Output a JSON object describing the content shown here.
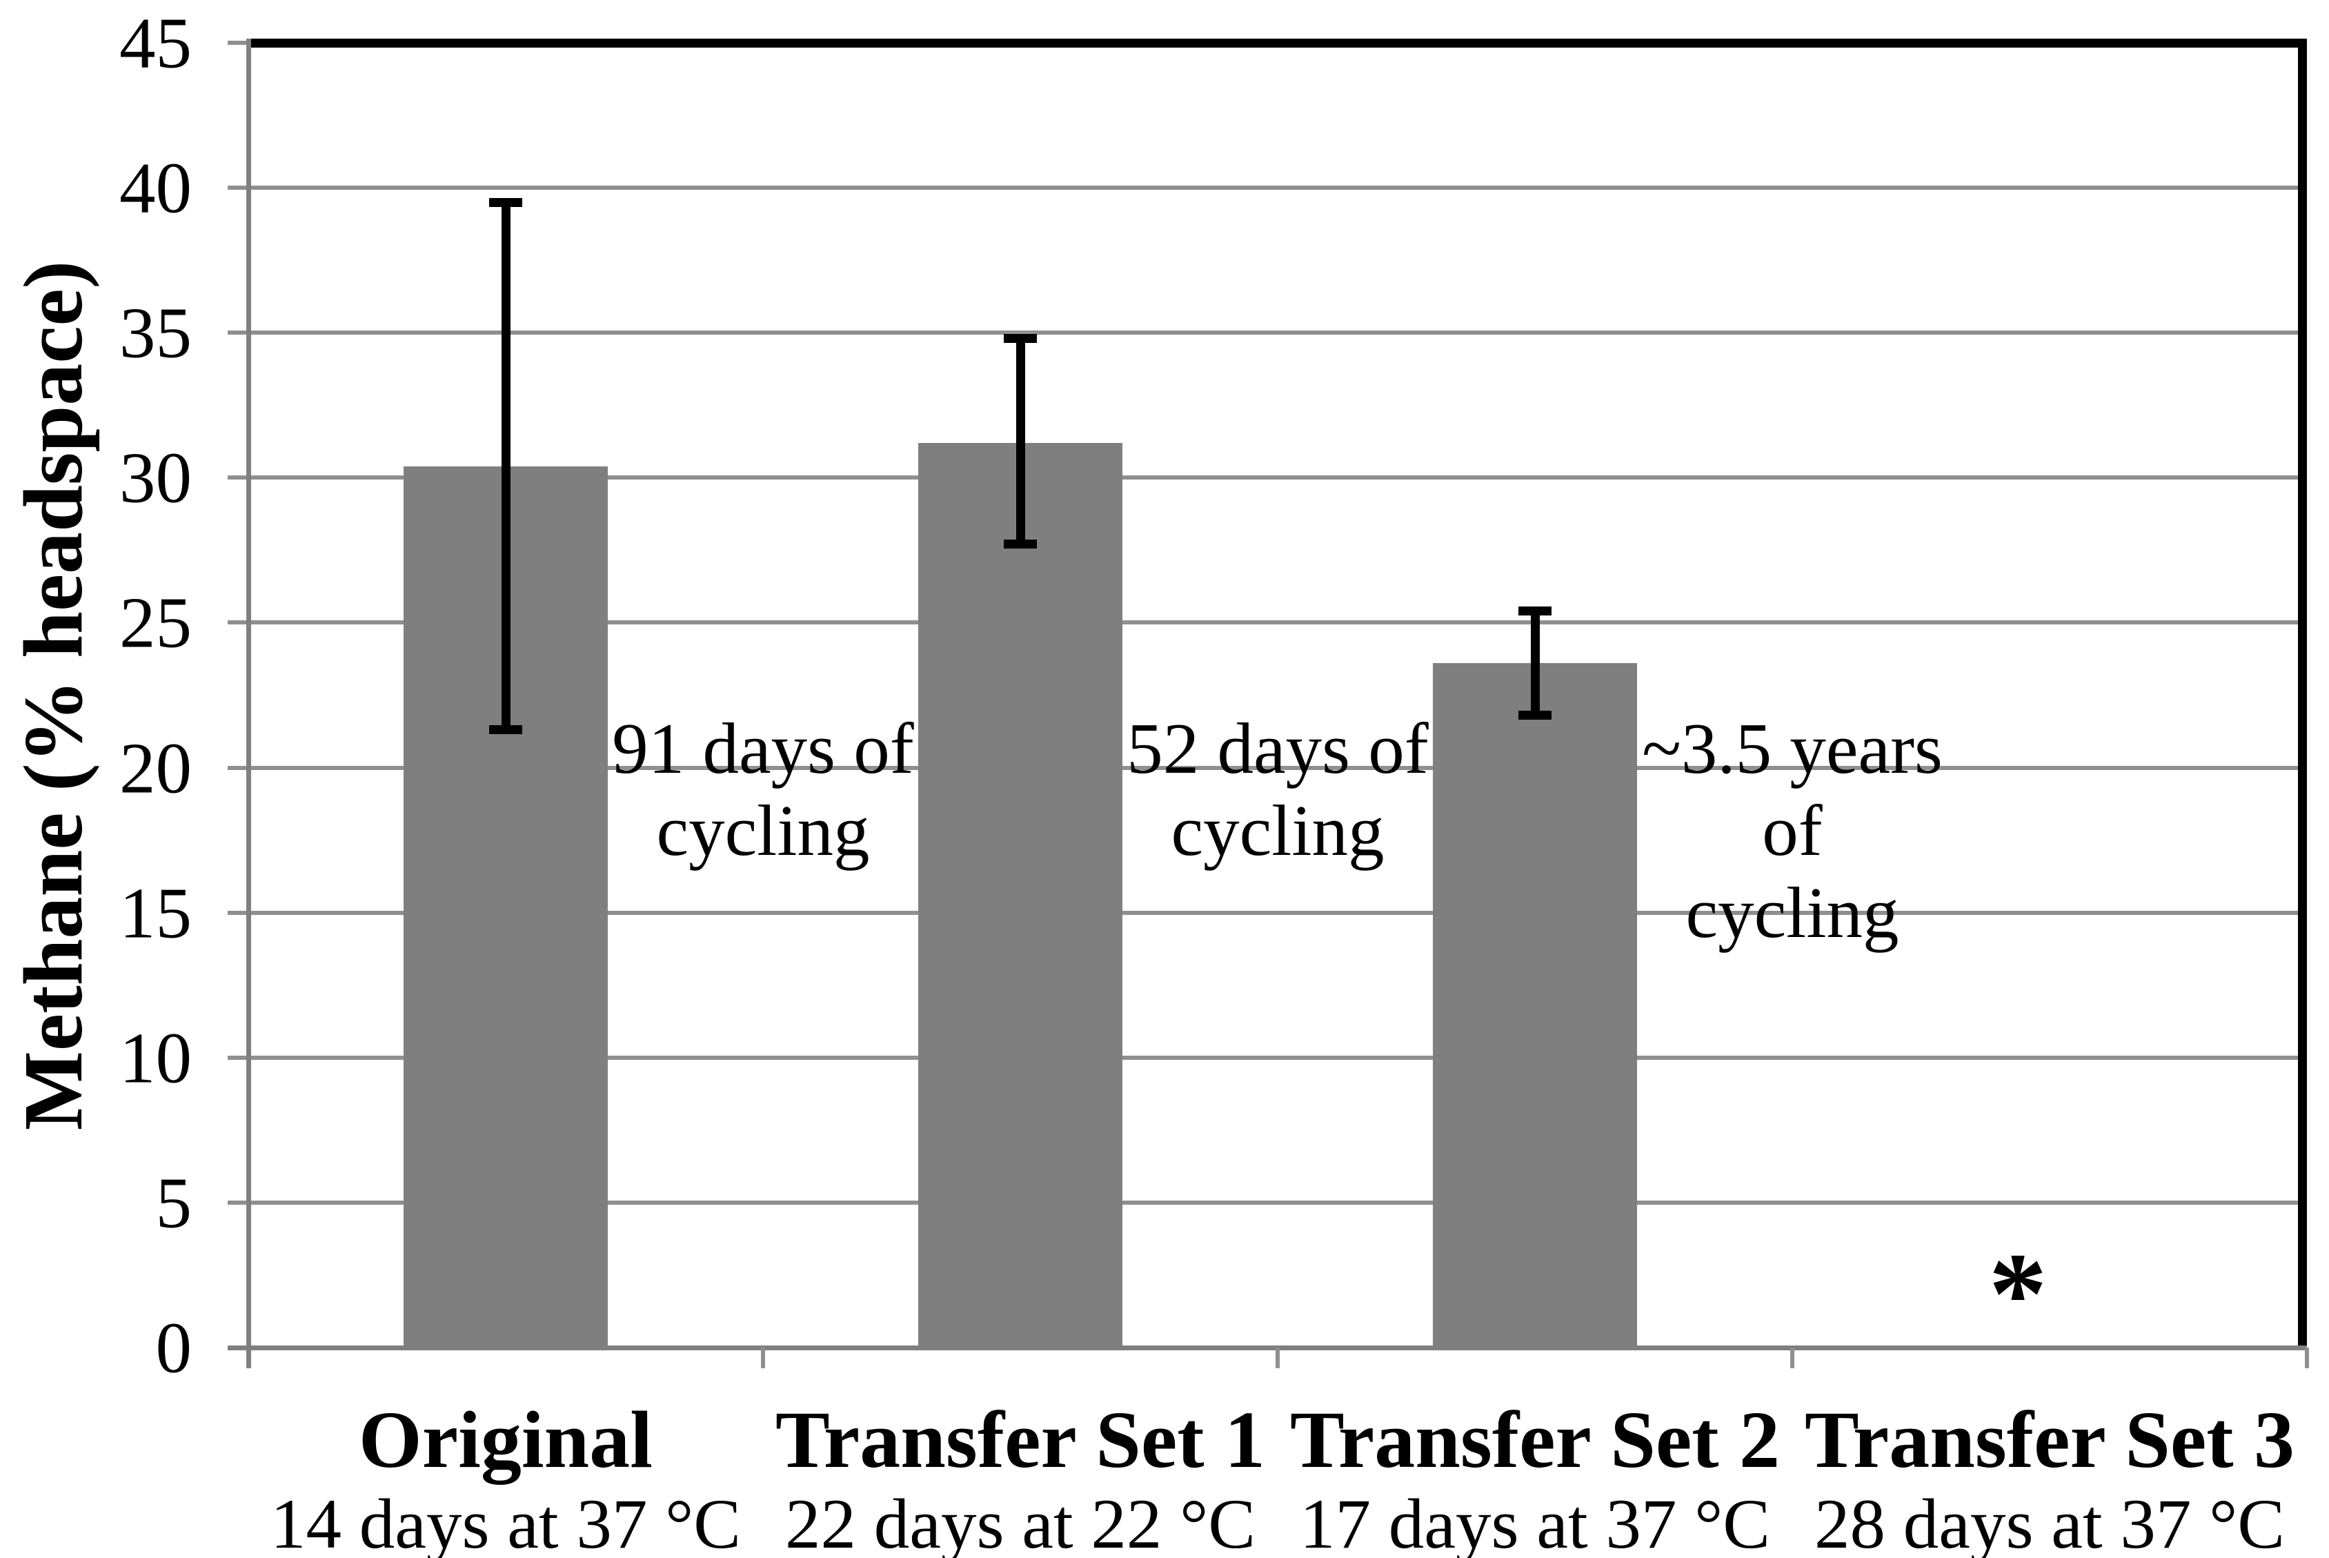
{
  "chart_data": {
    "type": "bar",
    "title": "",
    "xlabel": "",
    "ylabel": "Methane (% headspace)",
    "ylim": [
      0,
      45
    ],
    "yticks": [
      0,
      5,
      10,
      15,
      20,
      25,
      30,
      35,
      40,
      45
    ],
    "grid": "horizontal-gray",
    "legend": "none",
    "colors": {
      "bar": "#7f7f7f",
      "gridline": "#8f8f8f",
      "axis": "#7f7f7f",
      "plot_border": "#000000",
      "error_bar": "#000000",
      "text": "#000000"
    },
    "categories": [
      {
        "label": "Original",
        "sublabel": "14 days at 37 °C",
        "value": 30.4,
        "error_low": 21.3,
        "error_high": 39.5,
        "marker": null
      },
      {
        "label": "Transfer Set 1",
        "sublabel": "22 days at 22 °C",
        "value": 31.2,
        "error_low": 27.7,
        "error_high": 34.8,
        "marker": null
      },
      {
        "label": "Transfer Set 2",
        "sublabel": "17 days at 37 °C",
        "value": 23.6,
        "error_low": 21.8,
        "error_high": 25.4,
        "marker": null
      },
      {
        "label": "Transfer Set 3",
        "sublabel": "28 days at 37 °C",
        "value": null,
        "error_low": null,
        "error_high": null,
        "marker": "*"
      }
    ],
    "annotations": [
      {
        "lines": [
          "91 days of",
          "cycling"
        ],
        "after_category": 0
      },
      {
        "lines": [
          "52 days of",
          "cycling"
        ],
        "after_category": 1
      },
      {
        "lines": [
          "~3.5 years",
          "of",
          "cycling"
        ],
        "after_category": 2
      }
    ]
  }
}
